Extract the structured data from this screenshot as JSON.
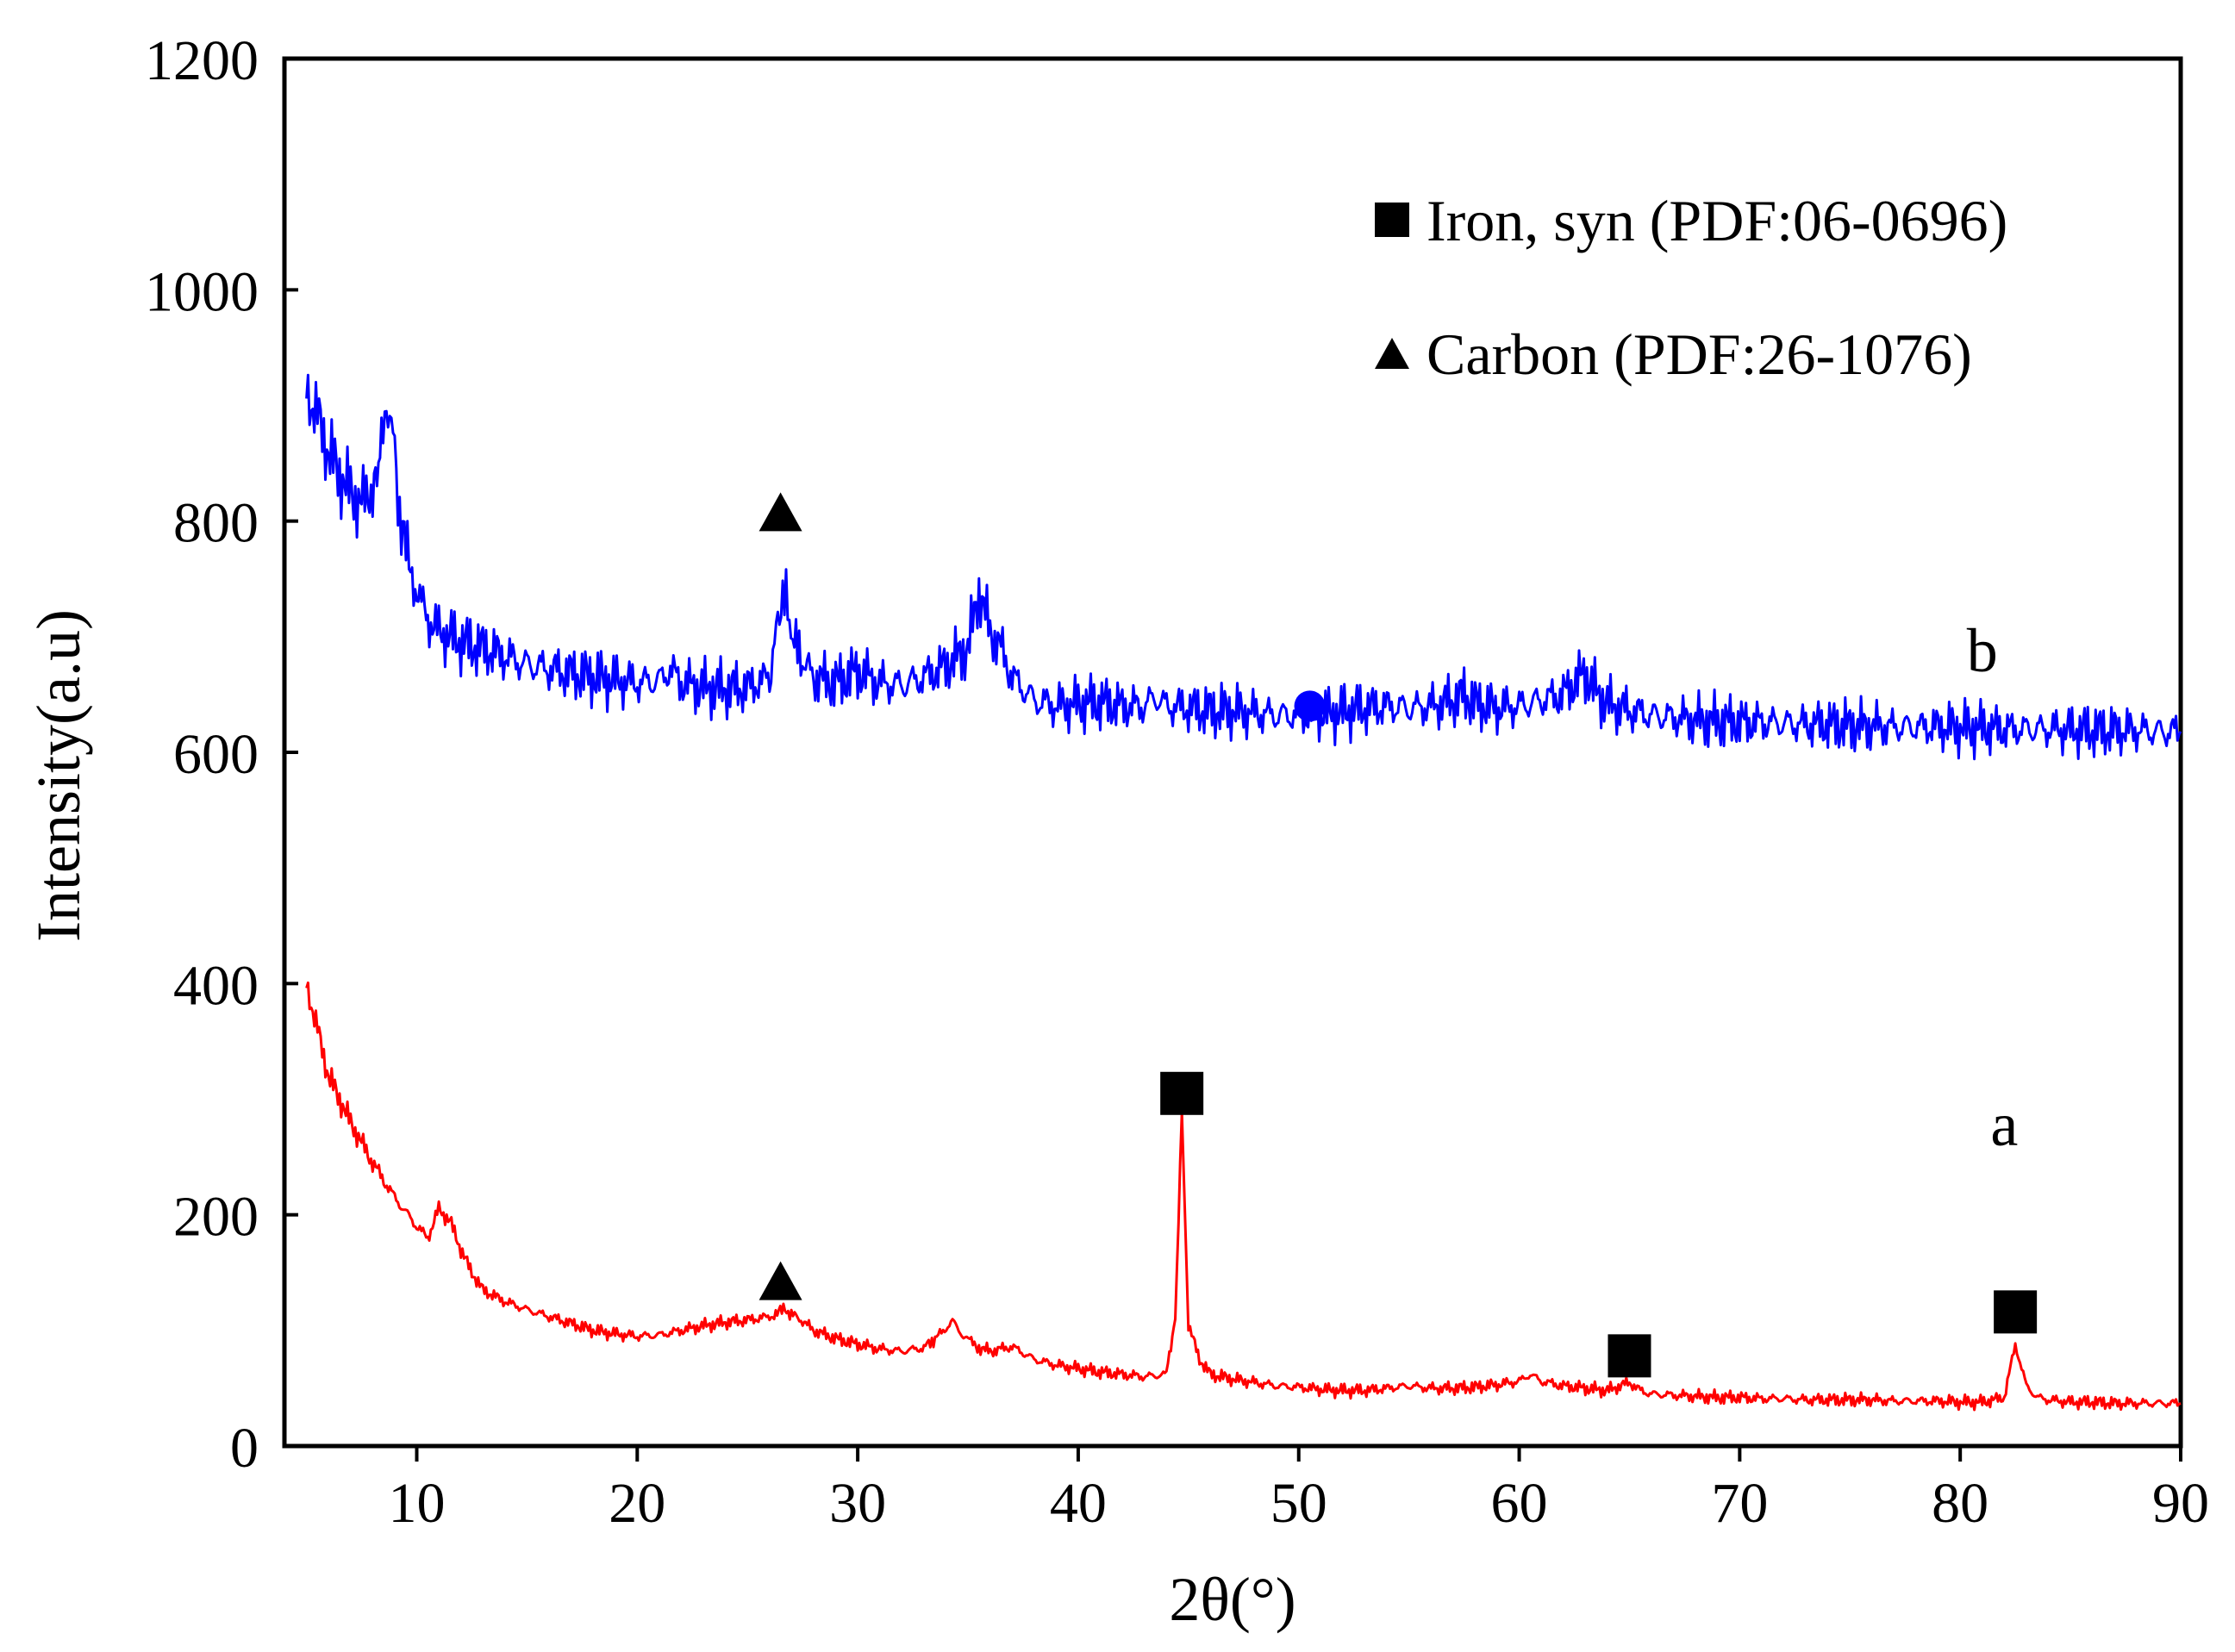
{
  "chart_data": {
    "type": "line",
    "title": "",
    "xlabel": "2θ(°)",
    "ylabel": "Intensity(a.u)",
    "xlim": [
      4,
      90
    ],
    "ylim": [
      0,
      1200
    ],
    "xticks": [
      10,
      20,
      30,
      40,
      50,
      60,
      70,
      80,
      90
    ],
    "yticks": [
      0,
      200,
      400,
      600,
      800,
      1000,
      1200
    ],
    "grid": false,
    "legend": [
      {
        "marker": "square",
        "label": "Iron, syn (PDF:06-0696)"
      },
      {
        "marker": "triangle",
        "label": "Carbon (PDF:26-1076)"
      }
    ],
    "legend_position": "top-right",
    "series": [
      {
        "name": "a",
        "color": "#ff0000",
        "label_at": [
          82,
          260
        ],
        "points": [
          [
            5,
            400
          ],
          [
            5.5,
            360
          ],
          [
            6,
            320
          ],
          [
            7,
            280
          ],
          [
            8,
            245
          ],
          [
            9,
            215
          ],
          [
            10,
            190
          ],
          [
            10.5,
            180
          ],
          [
            11,
            205
          ],
          [
            11.5,
            195
          ],
          [
            12,
            170
          ],
          [
            12.5,
            150
          ],
          [
            13,
            135
          ],
          [
            14,
            125
          ],
          [
            15,
            118
          ],
          [
            16,
            112
          ],
          [
            17,
            106
          ],
          [
            18,
            100
          ],
          [
            19,
            97
          ],
          [
            20,
            95
          ],
          [
            21,
            96
          ],
          [
            22,
            100
          ],
          [
            23,
            104
          ],
          [
            24,
            107
          ],
          [
            25,
            109
          ],
          [
            26,
            112
          ],
          [
            26.7,
            118
          ],
          [
            27.5,
            108
          ],
          [
            28,
            100
          ],
          [
            29,
            93
          ],
          [
            30,
            88
          ],
          [
            31,
            84
          ],
          [
            32,
            82
          ],
          [
            33,
            85
          ],
          [
            33.8,
            98
          ],
          [
            34.3,
            108
          ],
          [
            34.8,
            95
          ],
          [
            35.5,
            85
          ],
          [
            36,
            82
          ],
          [
            37,
            86
          ],
          [
            38,
            75
          ],
          [
            39,
            70
          ],
          [
            40,
            67
          ],
          [
            41,
            64
          ],
          [
            42,
            62
          ],
          [
            43,
            60
          ],
          [
            44,
            62
          ],
          [
            44.4,
            110
          ],
          [
            44.7,
            285
          ],
          [
            45,
            105
          ],
          [
            45.5,
            75
          ],
          [
            46,
            62
          ],
          [
            47,
            58
          ],
          [
            48,
            55
          ],
          [
            49,
            52
          ],
          [
            50,
            51
          ],
          [
            51,
            49
          ],
          [
            52,
            48
          ],
          [
            53,
            48
          ],
          [
            54,
            50
          ],
          [
            55,
            52
          ],
          [
            56,
            50
          ],
          [
            57,
            50
          ],
          [
            58,
            51
          ],
          [
            59,
            53
          ],
          [
            60,
            56
          ],
          [
            60.5,
            62
          ],
          [
            61,
            56
          ],
          [
            62,
            52
          ],
          [
            63,
            50
          ],
          [
            64,
            48
          ],
          [
            65,
            55
          ],
          [
            65.5,
            48
          ],
          [
            66,
            45
          ],
          [
            67,
            44
          ],
          [
            68,
            43
          ],
          [
            69,
            42
          ],
          [
            70,
            42
          ],
          [
            71,
            41
          ],
          [
            72,
            41
          ],
          [
            73,
            40
          ],
          [
            74,
            40
          ],
          [
            75,
            40
          ],
          [
            76,
            40
          ],
          [
            77,
            39
          ],
          [
            78,
            39
          ],
          [
            79,
            39
          ],
          [
            80,
            38
          ],
          [
            81,
            38
          ],
          [
            82,
            42
          ],
          [
            82.5,
            88
          ],
          [
            83,
            52
          ],
          [
            83.5,
            42
          ],
          [
            84,
            40
          ],
          [
            85,
            38
          ],
          [
            86,
            38
          ],
          [
            87,
            37
          ],
          [
            88,
            37
          ],
          [
            89,
            37
          ],
          [
            90,
            37
          ]
        ]
      },
      {
        "name": "b",
        "color": "#0000ff",
        "label_at": [
          81,
          670
        ],
        "points": [
          [
            5,
            915
          ],
          [
            5.5,
            890
          ],
          [
            6,
            860
          ],
          [
            6.5,
            840
          ],
          [
            7,
            825
          ],
          [
            7.5,
            815
          ],
          [
            8,
            830
          ],
          [
            8.4,
            860
          ],
          [
            8.7,
            905
          ],
          [
            9,
            860
          ],
          [
            9.3,
            790
          ],
          [
            10,
            740
          ],
          [
            10.5,
            715
          ],
          [
            11,
            705
          ],
          [
            12,
            695
          ],
          [
            13,
            690
          ],
          [
            14,
            683
          ],
          [
            15,
            676
          ],
          [
            16,
            672
          ],
          [
            17,
            668
          ],
          [
            18,
            665
          ],
          [
            19,
            662
          ],
          [
            20,
            660
          ],
          [
            21,
            662
          ],
          [
            21.5,
            672
          ],
          [
            22,
            660
          ],
          [
            23,
            656
          ],
          [
            24,
            655
          ],
          [
            25,
            656
          ],
          [
            26,
            665
          ],
          [
            26.6,
            740
          ],
          [
            27.2,
            690
          ],
          [
            28,
            665
          ],
          [
            29,
            660
          ],
          [
            30,
            670
          ],
          [
            31,
            660
          ],
          [
            32,
            658
          ],
          [
            33,
            665
          ],
          [
            34,
            675
          ],
          [
            35,
            690
          ],
          [
            35.5,
            740
          ],
          [
            36,
            705
          ],
          [
            36.5,
            690
          ],
          [
            37,
            665
          ],
          [
            38,
            645
          ],
          [
            39,
            640
          ],
          [
            40,
            642
          ],
          [
            41,
            643
          ],
          [
            42,
            640
          ],
          [
            43,
            640
          ],
          [
            43.5,
            648
          ],
          [
            44,
            640
          ],
          [
            45,
            638
          ],
          [
            46,
            636
          ],
          [
            47,
            636
          ],
          [
            48,
            634
          ],
          [
            49,
            632
          ],
          [
            50,
            632
          ],
          [
            51,
            633
          ],
          [
            52,
            635
          ],
          [
            53,
            638
          ],
          [
            54,
            640
          ],
          [
            55,
            638
          ],
          [
            56,
            640
          ],
          [
            57,
            645
          ],
          [
            57.5,
            650
          ],
          [
            58,
            642
          ],
          [
            59,
            638
          ],
          [
            60,
            640
          ],
          [
            61,
            645
          ],
          [
            62,
            650
          ],
          [
            62.5,
            660
          ],
          [
            63,
            668
          ],
          [
            63.5,
            652
          ],
          [
            64,
            642
          ],
          [
            65,
            636
          ],
          [
            66,
            632
          ],
          [
            67,
            630
          ],
          [
            68,
            628
          ],
          [
            69,
            627
          ],
          [
            70,
            626
          ],
          [
            71,
            626
          ],
          [
            72,
            625
          ],
          [
            73,
            624
          ],
          [
            74,
            624
          ],
          [
            75,
            623
          ],
          [
            76,
            623
          ],
          [
            77,
            622
          ],
          [
            78,
            622
          ],
          [
            79,
            622
          ],
          [
            80,
            621
          ],
          [
            81,
            621
          ],
          [
            82,
            620
          ],
          [
            83,
            620
          ],
          [
            84,
            620
          ],
          [
            85,
            619
          ],
          [
            86,
            619
          ],
          [
            87,
            619
          ],
          [
            88,
            619
          ],
          [
            89,
            618
          ],
          [
            90,
            618
          ]
        ]
      }
    ],
    "annotations": [
      {
        "marker": "triangle",
        "x": 26.5,
        "y": 808
      },
      {
        "marker": "circle",
        "x": 50.5,
        "y": 640
      },
      {
        "marker": "triangle",
        "x": 26.5,
        "y": 143
      },
      {
        "marker": "square",
        "x": 44.7,
        "y": 305
      },
      {
        "marker": "square",
        "x": 65.0,
        "y": 78
      },
      {
        "marker": "square",
        "x": 82.5,
        "y": 116
      }
    ]
  }
}
